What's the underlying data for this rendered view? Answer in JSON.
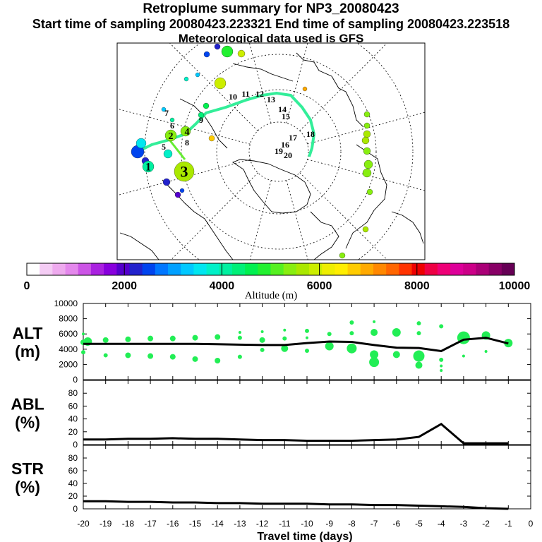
{
  "header": {
    "title": "Retroplume summary for NP3_20080423",
    "sampling_line": "Start time of sampling 20080423.223321     End time of sampling 20080423.223518",
    "met_line": "Meteorological data used is GFS"
  },
  "colorbar": {
    "label": "Altitude (m)",
    "ticks": [
      "0",
      "2000",
      "4000",
      "6000",
      "8000",
      "10000"
    ],
    "range": [
      0,
      10000
    ],
    "colors": [
      "#ffffff",
      "#f4ccf4",
      "#eeaaee",
      "#e488ec",
      "#cc55e6",
      "#aa22e0",
      "#8800dd",
      "#5500cc",
      "#2222cc",
      "#0044ee",
      "#0077ff",
      "#00a0ff",
      "#00c8ff",
      "#00e6f0",
      "#00f0c8",
      "#00f0a0",
      "#00f078",
      "#00f050",
      "#22f030",
      "#55f020",
      "#88ee10",
      "#aae800",
      "#ccee00",
      "#eeee00",
      "#ffee00",
      "#ffcc00",
      "#ffaa00",
      "#ff8800",
      "#ff6600",
      "#ff3300",
      "#ee0000",
      "#ee0044",
      "#ee0077",
      "#dd0099",
      "#cc0088",
      "#aa0077",
      "#880066",
      "#660055"
    ]
  },
  "map": {
    "day_labels": [
      "1",
      "2",
      "3",
      "4",
      "5",
      "6",
      "7",
      "8",
      "9",
      "10",
      "11",
      "12",
      "13",
      "14",
      "15",
      "16",
      "17",
      "18",
      "19",
      "20"
    ]
  },
  "chart_data": [
    {
      "type": "line",
      "name": "ALT",
      "ylabel_line1": "ALT",
      "ylabel_line2": "(m)",
      "x": [
        -20,
        -19,
        -18,
        -17,
        -16,
        -15,
        -14,
        -13,
        -12,
        -11,
        -10,
        -9,
        -8,
        -7,
        -6,
        -5,
        -4,
        -3,
        -2,
        -1
      ],
      "values": [
        4700,
        4700,
        4700,
        4700,
        4700,
        4700,
        4650,
        4600,
        4550,
        4550,
        4800,
        5000,
        4950,
        4550,
        4200,
        4150,
        3750,
        5250,
        5500,
        4750
      ],
      "ylim": [
        0,
        10000
      ],
      "yticks": [
        "0",
        "2000",
        "4000",
        "6000",
        "8000",
        "10000"
      ],
      "ytick_values": [
        0,
        2000,
        4000,
        6000,
        8000,
        10000
      ],
      "scatter_color": "#22ee55",
      "scatter": [
        [
          -20,
          4900,
          4
        ],
        [
          -20,
          3600,
          3
        ],
        [
          -20,
          6000,
          2
        ],
        [
          -19.8,
          5000,
          6
        ],
        [
          -19,
          5200,
          4
        ],
        [
          -19,
          3200,
          3
        ],
        [
          -18,
          5300,
          4
        ],
        [
          -18,
          3200,
          4
        ],
        [
          -17,
          5400,
          4
        ],
        [
          -17,
          3100,
          4
        ],
        [
          -16,
          5400,
          4
        ],
        [
          -16,
          3000,
          4
        ],
        [
          -15,
          5500,
          4
        ],
        [
          -15,
          2700,
          4
        ],
        [
          -14,
          5600,
          4
        ],
        [
          -14,
          2500,
          4
        ],
        [
          -13,
          5500,
          3
        ],
        [
          -13,
          3000,
          3
        ],
        [
          -13,
          6200,
          2
        ],
        [
          -12,
          6300,
          2
        ],
        [
          -12,
          5200,
          4
        ],
        [
          -12,
          3900,
          3
        ],
        [
          -11,
          6500,
          2
        ],
        [
          -11,
          5400,
          3
        ],
        [
          -11,
          4100,
          5
        ],
        [
          -10,
          6400,
          3
        ],
        [
          -10,
          5500,
          2
        ],
        [
          -10,
          3800,
          3
        ],
        [
          -9,
          6000,
          3
        ],
        [
          -9,
          4400,
          6
        ],
        [
          -8,
          7500,
          3
        ],
        [
          -8,
          6100,
          3
        ],
        [
          -8,
          4100,
          7
        ],
        [
          -7,
          7600,
          2
        ],
        [
          -7,
          6200,
          5
        ],
        [
          -7,
          3300,
          6
        ],
        [
          -7,
          2300,
          7
        ],
        [
          -6,
          6200,
          6
        ],
        [
          -6,
          3300,
          5
        ],
        [
          -5,
          7400,
          3
        ],
        [
          -5,
          6100,
          3
        ],
        [
          -5,
          3100,
          8
        ],
        [
          -5,
          1900,
          5
        ],
        [
          -4,
          7000,
          3
        ],
        [
          -4,
          2600,
          3
        ],
        [
          -4,
          1800,
          2
        ],
        [
          -4,
          1200,
          2
        ],
        [
          -3,
          5500,
          9
        ],
        [
          -3,
          3100,
          2
        ],
        [
          -2,
          5800,
          6
        ],
        [
          -2,
          3700,
          2
        ],
        [
          -1,
          4800,
          6
        ]
      ]
    },
    {
      "type": "line",
      "name": "ABL",
      "ylabel_line1": "ABL",
      "ylabel_line2": "(%)",
      "x": [
        -20,
        -19,
        -18,
        -17,
        -16,
        -15,
        -14,
        -13,
        -12,
        -11,
        -10,
        -9,
        -8,
        -7,
        -6,
        -5,
        -4,
        -3,
        -2,
        -1
      ],
      "values": [
        8,
        8,
        9,
        9,
        10,
        9,
        9,
        8,
        7,
        7,
        6,
        6,
        6,
        7,
        8,
        12,
        32,
        2,
        2,
        2
      ],
      "ylim": [
        0,
        100
      ],
      "yticks": [
        "0",
        "20",
        "40",
        "60",
        "80"
      ],
      "ytick_values": [
        0,
        20,
        40,
        60,
        80
      ]
    },
    {
      "type": "line",
      "name": "STR",
      "ylabel_line1": "STR",
      "ylabel_line2": "(%)",
      "xlabel": "Travel time (days)",
      "x": [
        -20,
        -19,
        -18,
        -17,
        -16,
        -15,
        -14,
        -13,
        -12,
        -11,
        -10,
        -9,
        -8,
        -7,
        -6,
        -5,
        -4,
        -3,
        -2,
        -1
      ],
      "values": [
        12,
        12,
        11,
        11,
        10,
        10,
        9,
        9,
        8,
        8,
        8,
        7,
        7,
        6,
        6,
        5,
        4,
        3,
        1,
        0
      ],
      "ylim": [
        0,
        100
      ],
      "yticks": [
        "0",
        "20",
        "40",
        "60",
        "80"
      ],
      "ytick_values": [
        0,
        20,
        40,
        60,
        80
      ],
      "xticks": [
        "-20",
        "-19",
        "-18",
        "-17",
        "-16",
        "-15",
        "-14",
        "-13",
        "-12",
        "-11",
        "-10",
        "-9",
        "-8",
        "-7",
        "-6",
        "-5",
        "-4",
        "-3",
        "-2",
        "-1",
        "0"
      ],
      "xtick_values": [
        -20,
        -19,
        -18,
        -17,
        -16,
        -15,
        -14,
        -13,
        -12,
        -11,
        -10,
        -9,
        -8,
        -7,
        -6,
        -5,
        -4,
        -3,
        -2,
        -1,
        0
      ],
      "xlim": [
        -20,
        0
      ]
    }
  ]
}
